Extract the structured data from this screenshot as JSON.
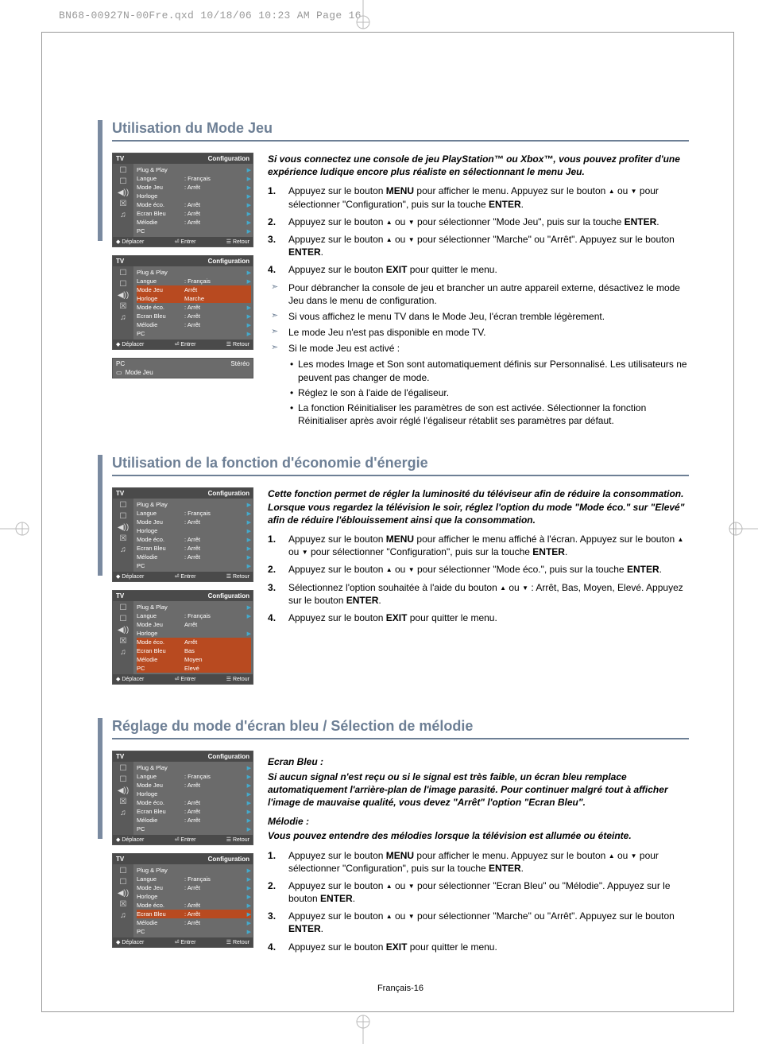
{
  "header_line": "BN68-00927N-00Fre.qxd  10/18/06  10:23 AM  Page 16",
  "page_number": "Français-16",
  "colors": {
    "section_accent": "#6d7f95",
    "section_bar": "#7a8aa0",
    "osd_highlight": "#b84a20"
  },
  "arrows": {
    "up": "▲",
    "down": "▼"
  },
  "osd_common": {
    "header_left": "TV",
    "header_right": "Configuration",
    "footer_move": "Déplacer",
    "footer_enter": "Entrer",
    "footer_return": "Retour",
    "icons": [
      "☐",
      "☐",
      "◀))",
      "☒",
      "♫"
    ]
  },
  "sections": [
    {
      "title": "Utilisation du Mode Jeu",
      "intro": "Si vous connectez une console de jeu PlayStation™ ou Xbox™, vous pouvez profiter d'une expérience ludique encore plus réaliste en sélectionnant le menu Jeu.",
      "osd": [
        {
          "highlight": null,
          "rows": [
            {
              "label": "Plug & Play",
              "val": "",
              "arrow": true
            },
            {
              "label": "Langue",
              "val": ": Français",
              "arrow": true
            },
            {
              "label": "Mode Jeu",
              "val": ": Arrêt",
              "arrow": true
            },
            {
              "label": "Horloge",
              "val": "",
              "arrow": true
            },
            {
              "label": "Mode éco.",
              "val": ": Arrêt",
              "arrow": true
            },
            {
              "label": "Ecran Bleu",
              "val": ": Arrêt",
              "arrow": true
            },
            {
              "label": "Mélodie",
              "val": ": Arrêt",
              "arrow": true
            },
            {
              "label": "PC",
              "val": "",
              "arrow": true
            }
          ]
        },
        {
          "highlight": 2,
          "rows": [
            {
              "label": "Plug & Play",
              "val": "",
              "arrow": true
            },
            {
              "label": "Langue",
              "val": ": Français",
              "arrow": true
            },
            {
              "label": "Mode Jeu",
              "val": "  Arrêt",
              "arrow": false,
              "alt": true
            },
            {
              "label": "Horloge",
              "val": "  Marche",
              "arrow": false,
              "alt": true
            },
            {
              "label": "Mode éco.",
              "val": ": Arrêt",
              "arrow": true
            },
            {
              "label": "Ecran Bleu",
              "val": ": Arrêt",
              "arrow": true
            },
            {
              "label": "Mélodie",
              "val": ": Arrêt",
              "arrow": true
            },
            {
              "label": "PC",
              "val": "",
              "arrow": true
            }
          ]
        }
      ],
      "mini_osd": {
        "top_left": "PC",
        "top_right": "Stéréo",
        "icon": "▭",
        "label": "Mode Jeu"
      },
      "steps": [
        "Appuyez sur le bouton <b>MENU</b> pour afficher le menu. Appuyez sur le bouton <span class='tri'>▲</span> ou <span class='tri'>▼</span> pour sélectionner \"Configuration\", puis sur la touche <b>ENTER</b>.",
        "Appuyez sur le bouton <span class='tri'>▲</span> ou <span class='tri'>▼</span> pour sélectionner \"Mode Jeu\", puis sur la touche <b>ENTER</b>.",
        "Appuyez sur le bouton <span class='tri'>▲</span> ou <span class='tri'>▼</span> pour sélectionner \"Marche\" ou \"Arrêt\". Appuyez sur le bouton <b>ENTER</b>.",
        "Appuyez sur le bouton <b>EXIT</b> pour quitter le menu."
      ],
      "notes": [
        "Pour débrancher la console de jeu et brancher un autre appareil externe, désactivez le mode Jeu dans le menu de configuration.",
        "Si vous affichez le menu TV dans le Mode Jeu, l'écran tremble légèrement.",
        "Le mode Jeu n'est pas disponible en mode TV.",
        "Si le mode Jeu est activé :"
      ],
      "sub_bullets": [
        "Les modes Image et Son sont automatiquement définis sur Personnalisé. Les utilisateurs ne peuvent pas changer de mode.",
        "Réglez le son à l'aide de l'égaliseur.",
        "La fonction Réinitialiser les paramètres de son est activée. Sélectionner la fonction Réinitialiser après avoir réglé l'égaliseur rétablit ses paramètres par défaut."
      ]
    },
    {
      "title": "Utilisation de la fonction d'économie d'énergie",
      "intro": "Cette fonction permet de régler la luminosité du téléviseur afin de réduire la consommation. Lorsque vous regardez la télévision le soir, réglez l'option du mode \"Mode éco.\" sur \"Elevé\" afin de réduire l'éblouissement ainsi que la consommation.",
      "osd": [
        {
          "highlight": null,
          "rows": [
            {
              "label": "Plug & Play",
              "val": "",
              "arrow": true
            },
            {
              "label": "Langue",
              "val": ": Français",
              "arrow": true
            },
            {
              "label": "Mode Jeu",
              "val": ": Arrêt",
              "arrow": true
            },
            {
              "label": "Horloge",
              "val": "",
              "arrow": true
            },
            {
              "label": "Mode éco.",
              "val": ": Arrêt",
              "arrow": true
            },
            {
              "label": "Ecran Bleu",
              "val": ": Arrêt",
              "arrow": true
            },
            {
              "label": "Mélodie",
              "val": ": Arrêt",
              "arrow": true
            },
            {
              "label": "PC",
              "val": "",
              "arrow": true
            }
          ]
        },
        {
          "highlight": 4,
          "rows": [
            {
              "label": "Plug & Play",
              "val": "",
              "arrow": true
            },
            {
              "label": "Langue",
              "val": ": Français",
              "arrow": true
            },
            {
              "label": "Mode Jeu",
              "val": "  Arrêt",
              "arrow": false
            },
            {
              "label": "Horloge",
              "val": "",
              "arrow": true
            },
            {
              "label": "Mode éco.",
              "val": "  Arrêt",
              "arrow": false,
              "alt": true
            },
            {
              "label": "Ecran Bleu",
              "val": "  Bas",
              "arrow": false,
              "alt": true
            },
            {
              "label": "Mélodie",
              "val": "  Moyen",
              "arrow": false,
              "alt": true
            },
            {
              "label": "PC",
              "val": "  Elevé",
              "arrow": false,
              "alt": true
            }
          ]
        }
      ],
      "steps": [
        "Appuyez sur le bouton <b>MENU</b> pour afficher le menu affiché à l'écran. Appuyez sur le bouton <span class='tri'>▲</span> ou <span class='tri'>▼</span> pour sélectionner \"Configuration\", puis sur la touche <b>ENTER</b>.",
        "Appuyez sur le bouton <span class='tri'>▲</span> ou <span class='tri'>▼</span> pour sélectionner \"Mode éco.\", puis sur la touche <b>ENTER</b>.",
        "Sélectionnez l'option souhaitée à l'aide du bouton <span class='tri'>▲</span> ou <span class='tri'>▼</span> : Arrêt, Bas, Moyen, Elevé. Appuyez sur le bouton <b>ENTER</b>.",
        "Appuyez sur le bouton <b>EXIT</b> pour quitter le menu."
      ]
    },
    {
      "title": "Réglage du mode d'écran bleu / Sélection de mélodie",
      "subheads": [
        {
          "h": "Ecran Bleu :",
          "t": "Si aucun signal n'est reçu ou si le signal est très faible, un écran bleu remplace automatiquement l'arrière-plan de l'image parasité. Pour continuer malgré tout à afficher l'image de mauvaise qualité, vous devez \"Arrêt\" l'option \"Ecran Bleu\"."
        },
        {
          "h": "Mélodie :",
          "t": "Vous pouvez entendre des mélodies lorsque la télévision est allumée ou éteinte."
        }
      ],
      "osd": [
        {
          "highlight": null,
          "rows": [
            {
              "label": "Plug & Play",
              "val": "",
              "arrow": true
            },
            {
              "label": "Langue",
              "val": ": Français",
              "arrow": true
            },
            {
              "label": "Mode Jeu",
              "val": ": Arrêt",
              "arrow": true
            },
            {
              "label": "Horloge",
              "val": "",
              "arrow": true
            },
            {
              "label": "Mode éco.",
              "val": ": Arrêt",
              "arrow": true
            },
            {
              "label": "Ecran Bleu",
              "val": ": Arrêt",
              "arrow": true
            },
            {
              "label": "Mélodie",
              "val": ": Arrêt",
              "arrow": true
            },
            {
              "label": "PC",
              "val": "",
              "arrow": true
            }
          ]
        },
        {
          "highlight": 5,
          "rows": [
            {
              "label": "Plug & Play",
              "val": "",
              "arrow": true
            },
            {
              "label": "Langue",
              "val": ": Français",
              "arrow": true
            },
            {
              "label": "Mode Jeu",
              "val": ": Arrêt",
              "arrow": true
            },
            {
              "label": "Horloge",
              "val": "",
              "arrow": true
            },
            {
              "label": "Mode éco.",
              "val": ": Arrêt",
              "arrow": true
            },
            {
              "label": "Ecran Bleu",
              "val": ": Arrêt",
              "arrow": true
            },
            {
              "label": "Mélodie",
              "val": ": Arrêt",
              "arrow": true
            },
            {
              "label": "PC",
              "val": "",
              "arrow": true
            }
          ]
        }
      ],
      "steps": [
        "Appuyez sur le bouton <b>MENU</b> pour afficher le menu. Appuyez sur le bouton <span class='tri'>▲</span> ou <span class='tri'>▼</span> pour sélectionner \"Configuration\", puis sur la touche <b>ENTER</b>.",
        "Appuyez sur le bouton <span class='tri'>▲</span> ou <span class='tri'>▼</span> pour sélectionner \"Ecran Bleu\" ou \"Mélodie\". Appuyez sur le bouton <b>ENTER</b>.",
        "Appuyez sur le bouton <span class='tri'>▲</span> ou <span class='tri'>▼</span> pour sélectionner \"Marche\" ou \"Arrêt\". Appuyez sur le bouton <b>ENTER</b>.",
        "Appuyez sur le bouton <b>EXIT</b> pour quitter le menu."
      ]
    }
  ]
}
